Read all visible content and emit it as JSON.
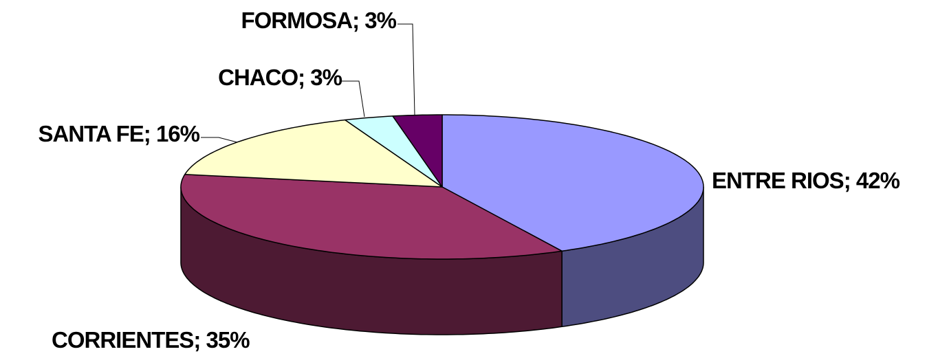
{
  "chart_data": {
    "type": "pie3d",
    "categories": [
      "ENTRE RIOS",
      "CORRIENTES",
      "SANTA FE",
      "CHACO",
      "FORMOSA"
    ],
    "values": [
      42,
      35,
      16,
      3,
      3
    ],
    "label_separator": "; ",
    "value_labels": [
      "42%",
      "35%",
      "16%",
      "3%",
      "3%"
    ],
    "colors": [
      "#9999ff",
      "#993366",
      "#ffffcc",
      "#ccffff",
      "#660066"
    ],
    "side_colors": [
      "#4d4d80",
      "#4d1a33",
      "#808066",
      "#668080",
      "#330033"
    ]
  }
}
